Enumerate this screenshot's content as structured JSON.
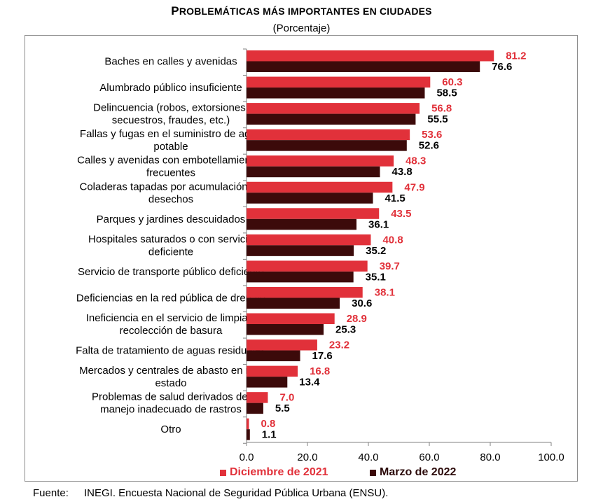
{
  "chart_data": {
    "type": "bar",
    "orientation": "horizontal",
    "title": "Problemáticas más importantes en ciudades",
    "subtitle": "(Porcentaje)",
    "categories": [
      "Baches en calles y avenidas",
      "Alumbrado público insuficiente",
      "Delincuencia (robos, extorsiones, secuestros, fraudes, etc.)",
      "Fallas y fugas en el suministro de agua potable",
      "Calles y avenidas con embotellamientos frecuentes",
      "Coladeras tapadas por acumulación de desechos",
      "Parques y jardines descuidados",
      "Hospitales saturados o con servicio deficiente",
      "Servicio de transporte público deficiente",
      "Deficiencias en la red pública de drenaje",
      "Ineficiencia en el servicio de limpia y recolección de basura",
      "Falta de tratamiento de aguas residuales",
      "Mercados y centrales de abasto en mal estado",
      "Problemas de salud derivados del manejo inadecuado de rastros",
      "Otro"
    ],
    "category_lines": [
      [
        "Baches en calles y avenidas"
      ],
      [
        "Alumbrado público insuficiente"
      ],
      [
        "Delincuencia (robos, extorsiones,",
        "secuestros, fraudes, etc.)"
      ],
      [
        "Fallas y fugas en el suministro de agua",
        "potable"
      ],
      [
        "Calles y avenidas con embotellamientos",
        "frecuentes"
      ],
      [
        "Coladeras tapadas por acumulación de",
        "desechos"
      ],
      [
        "Parques y jardines descuidados"
      ],
      [
        "Hospitales saturados o con servicio",
        "deficiente"
      ],
      [
        "Servicio de transporte público deficiente"
      ],
      [
        "Deficiencias en la red pública de drenaje"
      ],
      [
        "Ineficiencia en el servicio de limpia y",
        "recolección de basura"
      ],
      [
        "Falta de tratamiento de aguas residuales"
      ],
      [
        "Mercados y centrales de abasto en mal",
        "estado"
      ],
      [
        "Problemas de salud derivados del",
        "manejo inadecuado de rastros"
      ],
      [
        "Otro"
      ]
    ],
    "series": [
      {
        "name": "Diciembre de 2021",
        "color": "#e1313a",
        "values": [
          81.2,
          60.3,
          56.8,
          53.6,
          48.3,
          47.9,
          43.5,
          40.8,
          39.7,
          38.1,
          28.9,
          23.2,
          16.8,
          7.0,
          0.8
        ]
      },
      {
        "name": "Marzo de 2022",
        "color": "#3c0a0a",
        "values": [
          76.6,
          58.5,
          55.5,
          52.6,
          43.8,
          41.5,
          36.1,
          35.2,
          35.1,
          30.6,
          25.3,
          17.6,
          13.4,
          5.5,
          1.1
        ]
      }
    ],
    "xlim": [
      0,
      100
    ],
    "xticks": [
      "0.0",
      "20.0",
      "40.0",
      "60.0",
      "80.0",
      "100.0"
    ],
    "grid": false,
    "legend_position": "bottom"
  },
  "title_parts": {
    "initial": "P",
    "rest": "ROBLEMÁTICAS MÁS IMPORTANTES EN CIUDADES"
  },
  "source": {
    "label": "Fuente:",
    "text": "INEGI. Encuesta Nacional de Seguridad Pública Urbana (ENSU)."
  }
}
